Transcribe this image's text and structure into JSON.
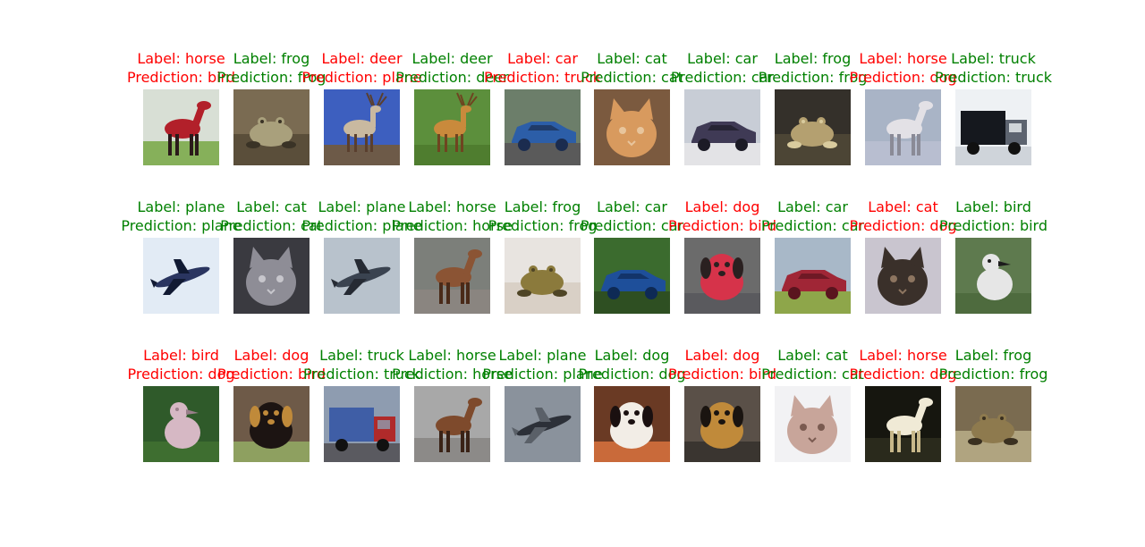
{
  "chart_data": {
    "type": "image-grid",
    "rows": 3,
    "cols": 10,
    "colors": {
      "correct": "#008000",
      "incorrect": "#ff0000"
    },
    "items": [
      {
        "label": "Label: horse",
        "prediction": "Prediction: bird",
        "correct": false,
        "depicts": "horse"
      },
      {
        "label": "Label: frog",
        "prediction": "Prediction: frog",
        "correct": true,
        "depicts": "frog"
      },
      {
        "label": "Label: deer",
        "prediction": "Prediction: plane",
        "correct": false,
        "depicts": "deer"
      },
      {
        "label": "Label: deer",
        "prediction": "Prediction: deer",
        "correct": true,
        "depicts": "deer"
      },
      {
        "label": "Label: car",
        "prediction": "Prediction: truck",
        "correct": false,
        "depicts": "car"
      },
      {
        "label": "Label: cat",
        "prediction": "Prediction: cat",
        "correct": true,
        "depicts": "cat"
      },
      {
        "label": "Label: car",
        "prediction": "Prediction: car",
        "correct": true,
        "depicts": "car"
      },
      {
        "label": "Label: frog",
        "prediction": "Prediction: frog",
        "correct": true,
        "depicts": "frog"
      },
      {
        "label": "Label: horse",
        "prediction": "Prediction: dog",
        "correct": false,
        "depicts": "horse"
      },
      {
        "label": "Label: truck",
        "prediction": "Prediction: truck",
        "correct": true,
        "depicts": "truck"
      },
      {
        "label": "Label: plane",
        "prediction": "Prediction: plane",
        "correct": true,
        "depicts": "plane"
      },
      {
        "label": "Label: cat",
        "prediction": "Prediction: cat",
        "correct": true,
        "depicts": "cat"
      },
      {
        "label": "Label: plane",
        "prediction": "Prediction: plane",
        "correct": true,
        "depicts": "plane"
      },
      {
        "label": "Label: horse",
        "prediction": "Prediction: horse",
        "correct": true,
        "depicts": "horse"
      },
      {
        "label": "Label: frog",
        "prediction": "Prediction: frog",
        "correct": true,
        "depicts": "frog"
      },
      {
        "label": "Label: car",
        "prediction": "Prediction: car",
        "correct": true,
        "depicts": "car"
      },
      {
        "label": "Label: dog",
        "prediction": "Prediction: bird",
        "correct": false,
        "depicts": "dog"
      },
      {
        "label": "Label: car",
        "prediction": "Prediction: car",
        "correct": true,
        "depicts": "car"
      },
      {
        "label": "Label: cat",
        "prediction": "Prediction: dog",
        "correct": false,
        "depicts": "cat"
      },
      {
        "label": "Label: bird",
        "prediction": "Prediction: bird",
        "correct": true,
        "depicts": "bird"
      },
      {
        "label": "Label: bird",
        "prediction": "Prediction: dog",
        "correct": false,
        "depicts": "bird"
      },
      {
        "label": "Label: dog",
        "prediction": "Prediction: bird",
        "correct": false,
        "depicts": "dog"
      },
      {
        "label": "Label: truck",
        "prediction": "Prediction: truck",
        "correct": true,
        "depicts": "truck"
      },
      {
        "label": "Label: horse",
        "prediction": "Prediction: horse",
        "correct": true,
        "depicts": "horse"
      },
      {
        "label": "Label: plane",
        "prediction": "Prediction: plane",
        "correct": true,
        "depicts": "plane"
      },
      {
        "label": "Label: dog",
        "prediction": "Prediction: dog",
        "correct": true,
        "depicts": "dog"
      },
      {
        "label": "Label: dog",
        "prediction": "Prediction: bird",
        "correct": false,
        "depicts": "dog"
      },
      {
        "label": "Label: cat",
        "prediction": "Prediction: cat",
        "correct": true,
        "depicts": "cat"
      },
      {
        "label": "Label: horse",
        "prediction": "Prediction: dog",
        "correct": false,
        "depicts": "horse"
      },
      {
        "label": "Label: frog",
        "prediction": "Prediction: frog",
        "correct": true,
        "depicts": "frog"
      }
    ],
    "thumb_palettes": [
      {
        "bg": "#d8dfd5",
        "ground": "#86b05a",
        "subject": "#b2202a",
        "accent": "#2a1a1a"
      },
      {
        "bg": "#7a6b52",
        "ground": "#5a4e3a",
        "subject": "#a9a07c",
        "accent": "#3a3326"
      },
      {
        "bg": "#3d5fbf",
        "ground": "#6d5a48",
        "subject": "#c9b9a0",
        "accent": "#5a3f2e"
      },
      {
        "bg": "#5c8f3c",
        "ground": "#4f7d2f",
        "subject": "#c98a3c",
        "accent": "#6f4420"
      },
      {
        "bg": "#6c7e6a",
        "ground": "#5a5a5a",
        "subject": "#2c5ea8",
        "accent": "#1b2c4f"
      },
      {
        "bg": "#7b5a3f",
        "ground": "#c8874e",
        "subject": "#d89a5e",
        "accent": "#e8c59c"
      },
      {
        "bg": "#c8cdd6",
        "ground": "#e3e3e6",
        "subject": "#3f3a55",
        "accent": "#1c1b26"
      },
      {
        "bg": "#34302a",
        "ground": "#4c4535",
        "subject": "#b4a070",
        "accent": "#d9cb9e"
      },
      {
        "bg": "#a9b4c6",
        "ground": "#b8bed0",
        "subject": "#e3e1e6",
        "accent": "#8a8a96"
      },
      {
        "bg": "#eef1f4",
        "ground": "#cfd4da",
        "subject": "#15181e",
        "accent": "#5d6470"
      },
      {
        "bg": "#e2ebf5",
        "ground": "#eef3f9",
        "subject": "#2a3560",
        "accent": "#111a33"
      },
      {
        "bg": "#3a3a40",
        "ground": "#7aa9e0",
        "subject": "#8e8d96",
        "accent": "#c7c6cc"
      },
      {
        "bg": "#b8c2cc",
        "ground": "#6f7580",
        "subject": "#3a4350",
        "accent": "#252a33"
      },
      {
        "bg": "#7c7f7a",
        "ground": "#8a8580",
        "subject": "#8b5434",
        "accent": "#4a2a18"
      },
      {
        "bg": "#e8e4e0",
        "ground": "#d9d0c6",
        "subject": "#8b7a3c",
        "accent": "#4f4526"
      },
      {
        "bg": "#3b6b2e",
        "ground": "#2e4f22",
        "subject": "#1e4f9a",
        "accent": "#0e2a55"
      },
      {
        "bg": "#6b6b6b",
        "ground": "#5a5a5e",
        "subject": "#d6334a",
        "accent": "#2a2020"
      },
      {
        "bg": "#a8b8c8",
        "ground": "#8ea64a",
        "subject": "#a02636",
        "accent": "#5a141e"
      },
      {
        "bg": "#c9c5cf",
        "ground": "#d8d4de",
        "subject": "#3a302a",
        "accent": "#8d7560"
      },
      {
        "bg": "#5e7a4e",
        "ground": "#4e6b3e",
        "subject": "#e6e6e6",
        "accent": "#1c1c1c"
      },
      {
        "bg": "#2f5a2a",
        "ground": "#3e6e30",
        "subject": "#d6b8c4",
        "accent": "#9a7f8a"
      },
      {
        "bg": "#6e5a48",
        "ground": "#8ea060",
        "subject": "#1c1412",
        "accent": "#c08a3a"
      },
      {
        "bg": "#8e9cb0",
        "ground": "#5a5a60",
        "subject": "#3f5ea6",
        "accent": "#b02a2a"
      },
      {
        "bg": "#a8a8a8",
        "ground": "#8c8a88",
        "subject": "#7e4a2c",
        "accent": "#3a2216"
      },
      {
        "bg": "#8a929c",
        "ground": "#b0b6be",
        "subject": "#2c3038",
        "accent": "#5a6068"
      },
      {
        "bg": "#6a3a24",
        "ground": "#c96a3a",
        "subject": "#f2ede6",
        "accent": "#1a1010"
      },
      {
        "bg": "#5a5048",
        "ground": "#3a3530",
        "subject": "#c08a3a",
        "accent": "#1a1410"
      },
      {
        "bg": "#f2f2f4",
        "ground": "#e4e4e8",
        "subject": "#c8a59a",
        "accent": "#7a5a50"
      },
      {
        "bg": "#16160f",
        "ground": "#2a2a1c",
        "subject": "#f0ead6",
        "accent": "#c8b88a"
      },
      {
        "bg": "#7a6b50",
        "ground": "#b0a480",
        "subject": "#8e7a4e",
        "accent": "#3a3020"
      }
    ]
  }
}
